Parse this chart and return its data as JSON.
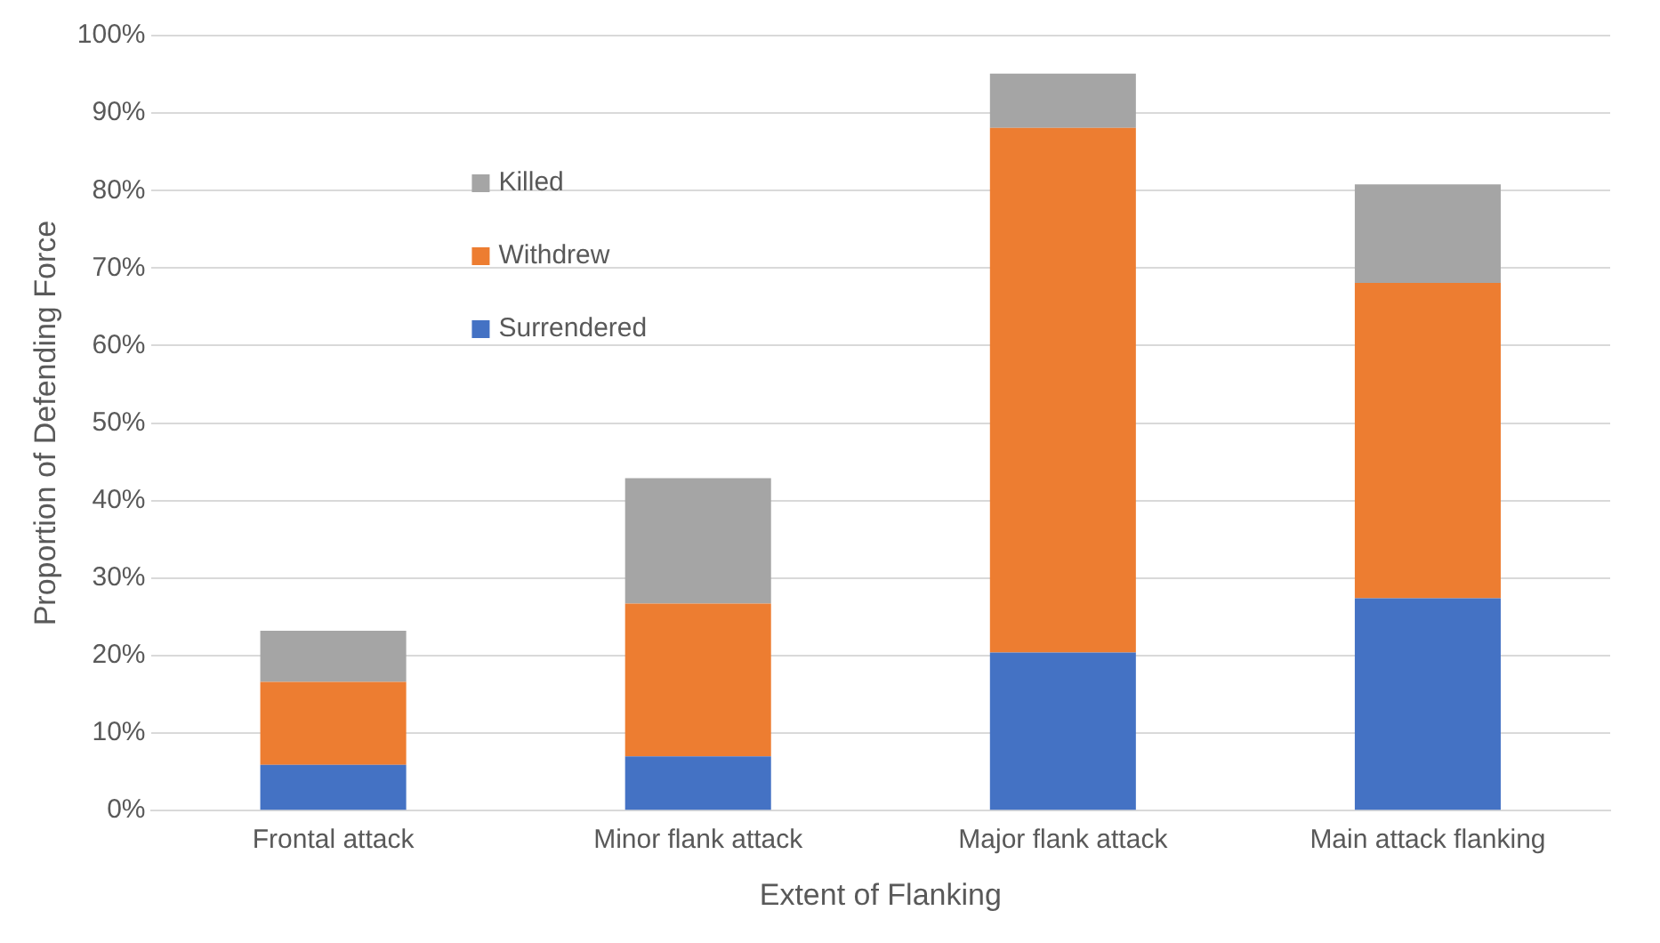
{
  "chart_data": {
    "type": "bar",
    "stacked": true,
    "xlabel": "Extent of Flanking",
    "ylabel": "Proportion of Defending Force",
    "categories": [
      "Frontal attack",
      "Minor flank attack",
      "Major flank attack",
      "Main attack flanking"
    ],
    "series": [
      {
        "name": "Surrendered",
        "color": "#4472c4",
        "values": [
          5.9,
          7.0,
          20.4,
          27.4
        ]
      },
      {
        "name": "Withdrew",
        "color": "#ed7d31",
        "values": [
          10.7,
          19.7,
          67.7,
          40.7
        ]
      },
      {
        "name": "Killed",
        "color": "#a5a5a5",
        "values": [
          6.6,
          16.2,
          7.0,
          12.7
        ]
      }
    ],
    "ylim": [
      0,
      100
    ],
    "yticks": [
      {
        "value": 0,
        "label": "0%"
      },
      {
        "value": 10,
        "label": "10%"
      },
      {
        "value": 20,
        "label": "20%"
      },
      {
        "value": 30,
        "label": "30%"
      },
      {
        "value": 40,
        "label": "40%"
      },
      {
        "value": 50,
        "label": "50%"
      },
      {
        "value": 60,
        "label": "60%"
      },
      {
        "value": 70,
        "label": "70%"
      },
      {
        "value": 80,
        "label": "80%"
      },
      {
        "value": 90,
        "label": "90%"
      },
      {
        "value": 100,
        "label": "100%"
      }
    ],
    "grid": "y",
    "legend": "top left"
  }
}
